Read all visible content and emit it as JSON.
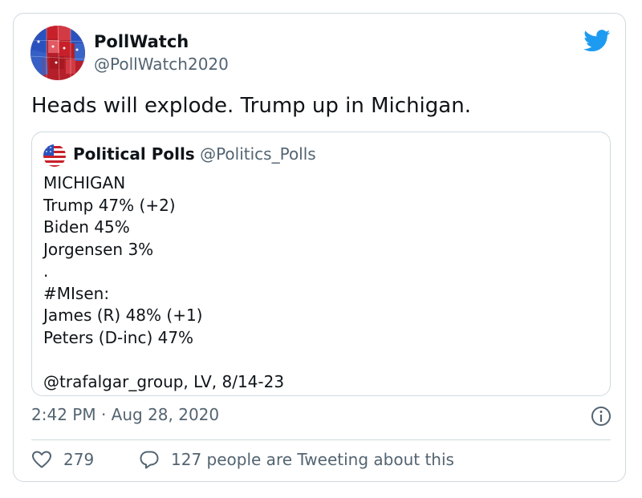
{
  "tweet": {
    "author_name": "PollWatch",
    "author_handle": "@PollWatch2020",
    "text": "Heads will explode. Trump up in Michigan.",
    "timestamp": "2:42 PM · Aug 28, 2020",
    "likes": "279",
    "conversation_text": "127 people are Tweeting about this"
  },
  "quote": {
    "author_name": "Political Polls",
    "author_handle": "@Politics_Polls",
    "lines": [
      "MICHIGAN",
      "Trump 47% (+2)",
      "Biden 45%",
      "Jorgensen 3%",
      ".",
      "#MIsen:",
      "James (R) 48% (+1)",
      "Peters (D-inc) 47%",
      "",
      "@trafalgar_group, LV, 8/14-23"
    ]
  },
  "icons": {
    "brand": "twitter-bird-icon",
    "info": "info-icon",
    "like": "heart-icon",
    "reply": "speech-bubble-icon"
  },
  "colors": {
    "twitter_blue": "#1d9bf0",
    "text_primary": "#0f1419",
    "text_secondary": "#536471",
    "border": "#cfd9de",
    "map_red": "#c8202a",
    "map_blue": "#2a52be"
  }
}
